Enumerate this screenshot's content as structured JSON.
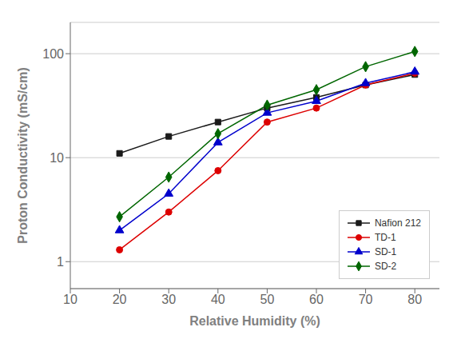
{
  "chart_data": {
    "type": "line",
    "x": [
      20,
      30,
      40,
      50,
      60,
      70,
      80
    ],
    "series": [
      {
        "name": "Nafion 212",
        "color": "#1a1a1a",
        "marker": "square",
        "values": [
          11,
          16,
          22,
          30,
          38,
          50,
          63
        ]
      },
      {
        "name": "TD-1",
        "color": "#dd0000",
        "marker": "circle",
        "values": [
          1.3,
          3.0,
          7.5,
          22,
          30,
          50,
          65
        ]
      },
      {
        "name": "SD-1",
        "color": "#0000cc",
        "marker": "triangle",
        "values": [
          2.0,
          4.5,
          14,
          27,
          35,
          52,
          67
        ]
      },
      {
        "name": "SD-2",
        "color": "#006600",
        "marker": "diamond",
        "values": [
          2.7,
          6.5,
          17,
          32,
          45,
          75,
          105
        ]
      }
    ],
    "xlabel": "Relative Humidity (%)",
    "ylabel": "Proton Conductivity (mS/cm)",
    "xlim": [
      10,
      85
    ],
    "ylim": [
      0.55,
      200
    ],
    "xticks": [
      10,
      20,
      30,
      40,
      50,
      60,
      70,
      80
    ],
    "yticks": [
      1,
      10,
      100
    ],
    "log": "y",
    "grid": true,
    "legend": "lower right"
  }
}
